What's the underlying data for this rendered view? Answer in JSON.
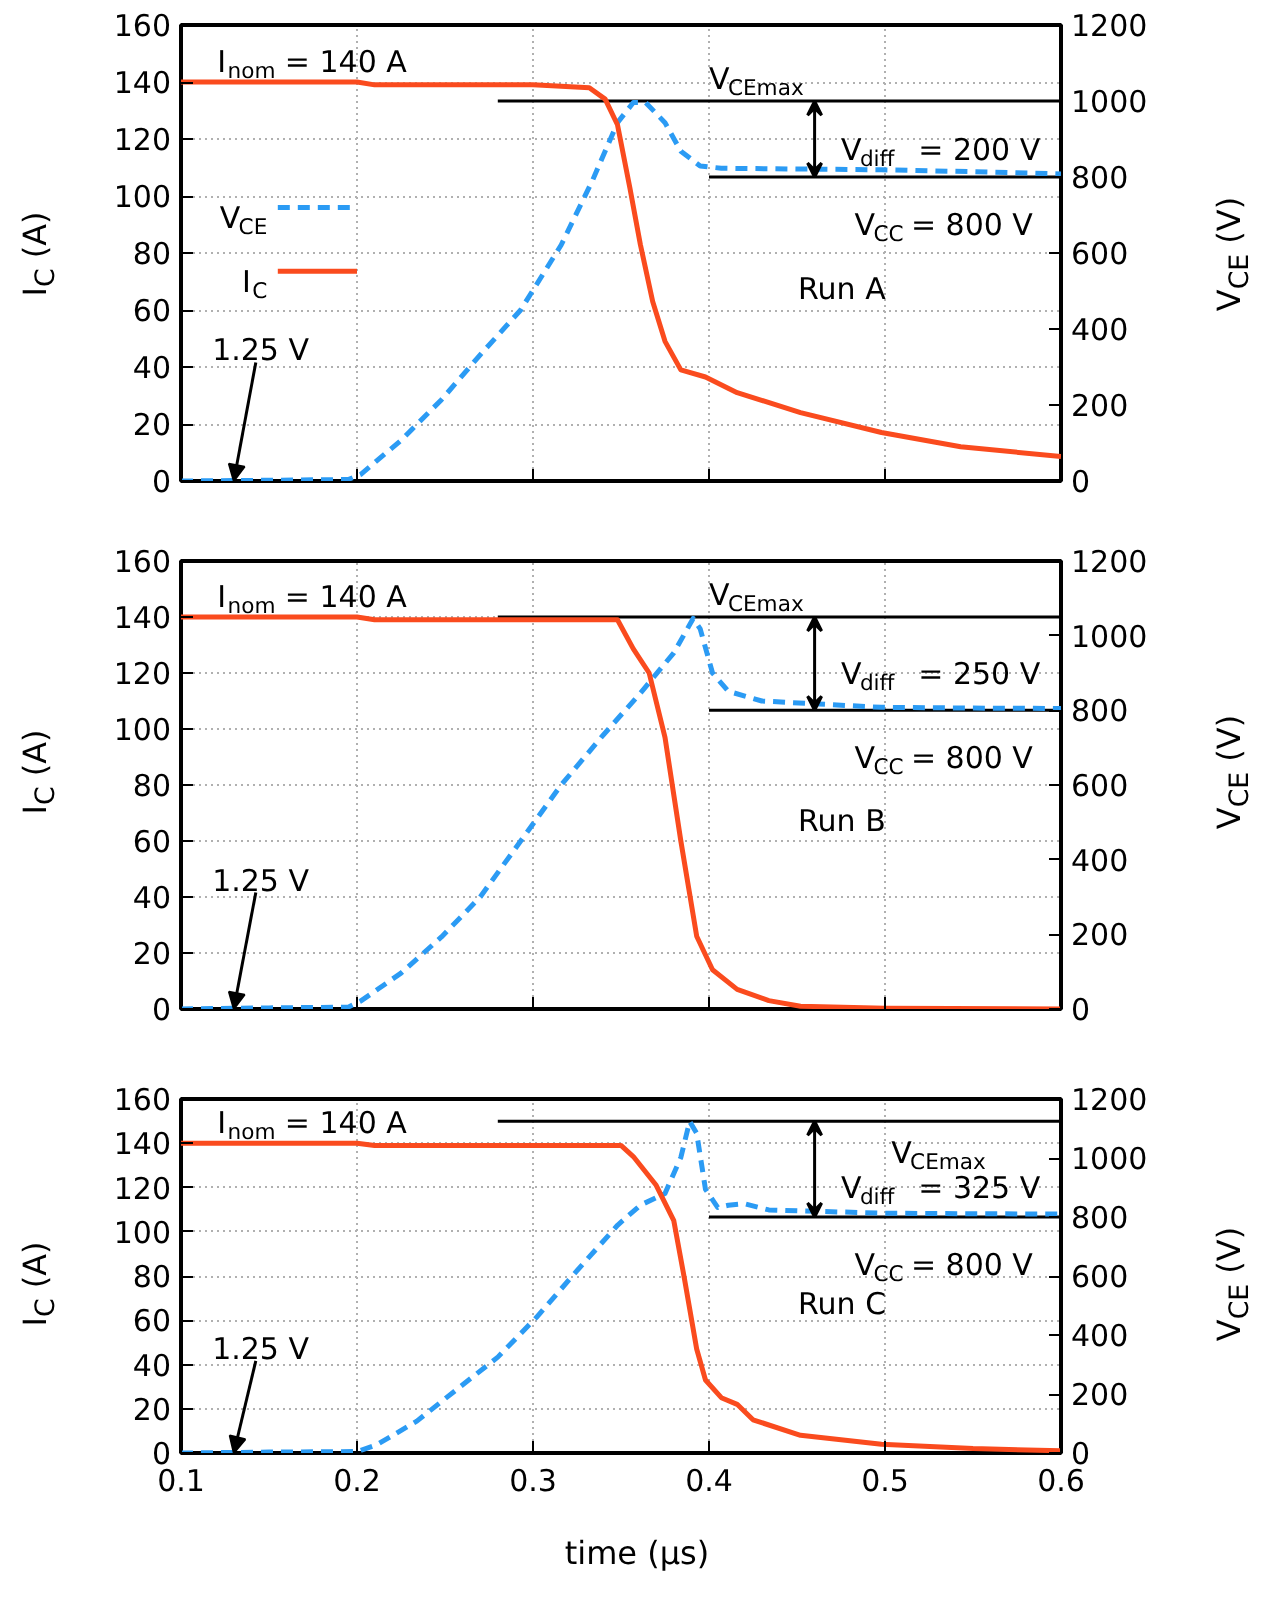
{
  "chart_data": [
    {
      "type": "line",
      "ylabel": "I$_{C}$ (A)",
      "y2label": "V$_{CE}$ (V)",
      "xlim": [
        0.1,
        0.6
      ],
      "xticks": [
        0.1,
        0.2,
        0.3,
        0.4,
        0.5,
        0.6
      ],
      "ylim": [
        0,
        160
      ],
      "yticks": [
        0,
        20,
        40,
        60,
        80,
        100,
        120,
        140,
        160
      ],
      "y2lim": [
        0,
        1200
      ],
      "y2ticks": [
        0,
        200,
        400,
        600,
        800,
        1000,
        1200
      ],
      "tick_labels": "y",
      "grid": true,
      "legend": "left",
      "series": [
        {
          "name": "V$_{CE}$",
          "color": "#2b9bf4",
          "axis": "y2",
          "line_style": "dashed",
          "x": [
            0.1,
            0.15,
            0.195,
            0.202,
            0.225,
            0.248,
            0.27,
            0.293,
            0.316,
            0.334,
            0.348,
            0.357,
            0.364,
            0.375,
            0.384,
            0.395,
            0.407,
            0.45,
            0.498,
            0.55,
            0.6
          ],
          "values": [
            0,
            2,
            4,
            17,
            107,
            214,
            332,
            450,
            621,
            793,
            943,
            996,
            996,
            943,
            868,
            829,
            823,
            821,
            819,
            814,
            808
          ]
        },
        {
          "name": "I$_{C}$",
          "color": "#fa4b1e",
          "line_style": "solid",
          "x": [
            0.1,
            0.2,
            0.21,
            0.25,
            0.3,
            0.332,
            0.341,
            0.348,
            0.355,
            0.361,
            0.368,
            0.375,
            0.384,
            0.398,
            0.416,
            0.452,
            0.498,
            0.543,
            0.6
          ],
          "values": [
            140,
            140,
            139,
            139,
            139,
            138,
            134,
            125,
            103,
            83,
            63,
            49,
            39,
            36.5,
            31,
            24,
            17,
            12,
            8.6
          ]
        }
      ],
      "ref_lines": [
        {
          "axis": "y2",
          "value": 1000,
          "label": "V$_{CEmax}$"
        },
        {
          "axis": "y2",
          "value": 800,
          "label": "V$_{CC}$ = 800 V"
        }
      ],
      "annotations": [
        {
          "text": "I$_{nom}$ = 140 A",
          "x": 0.17,
          "y": 140
        },
        {
          "text": "1.25 V",
          "x": 0.13,
          "y": 0
        },
        {
          "text": "V$_{diff}$ = 200 V",
          "x": 0.46,
          "y": 133.3
        },
        "Run A"
      ]
    },
    {
      "type": "line",
      "ylabel": "I$_{C}$ (A)",
      "y2label": "V$_{CE}$ (V)",
      "xlim": [
        0.1,
        0.6
      ],
      "xticks": [
        0.1,
        0.2,
        0.3,
        0.4,
        0.5,
        0.6
      ],
      "ylim": [
        0,
        160
      ],
      "yticks": [
        0,
        20,
        40,
        60,
        80,
        100,
        120,
        140,
        160
      ],
      "y2lim": [
        0,
        1200
      ],
      "y2ticks": [
        0,
        200,
        400,
        600,
        800,
        1000,
        1200
      ],
      "tick_labels": "y",
      "grid": true,
      "series": [
        {
          "color": "#2b9bf4",
          "axis": "y2",
          "line_style": "dashed",
          "x": [
            0.1,
            0.15,
            0.195,
            0.202,
            0.225,
            0.248,
            0.27,
            0.293,
            0.316,
            0.339,
            0.361,
            0.38,
            0.391,
            0.395,
            0.402,
            0.411,
            0.43,
            0.498,
            0.55,
            0.6
          ],
          "values": [
            0,
            3,
            5,
            21,
            96,
            193,
            300,
            450,
            600,
            729,
            846,
            954,
            1046,
            1018,
            900,
            851,
            825,
            808,
            806,
            805
          ]
        },
        {
          "color": "#fa4b1e",
          "line_style": "solid",
          "x": [
            0.1,
            0.2,
            0.21,
            0.3,
            0.348,
            0.357,
            0.366,
            0.375,
            0.384,
            0.393,
            0.402,
            0.416,
            0.434,
            0.452,
            0.5,
            0.6
          ],
          "values": [
            140,
            140,
            139,
            139,
            139,
            128.6,
            120,
            97,
            60,
            26,
            14,
            7,
            3,
            1,
            0.3,
            0
          ]
        }
      ],
      "ref_lines": [
        {
          "axis": "y2",
          "value": 1050,
          "label": "V$_{CEmax}$"
        },
        {
          "axis": "y2",
          "value": 800,
          "label": "V$_{CC}$ = 800 V"
        }
      ],
      "annotations": [
        {
          "text": "I$_{nom}$ = 140 A",
          "x": 0.17,
          "y": 140
        },
        {
          "text": "1.25 V",
          "x": 0.13,
          "y": 0
        },
        {
          "text": "V$_{diff}$ = 250 V",
          "x": 0.46,
          "y": 140
        },
        "Run B"
      ]
    },
    {
      "type": "line",
      "xlabel": "time (µs)",
      "ylabel": "I$_{C}$ (A)",
      "y2label": "V$_{CE}$ (V)",
      "xlim": [
        0.1,
        0.6
      ],
      "xticks": [
        0.1,
        0.2,
        0.3,
        0.4,
        0.5,
        0.6
      ],
      "ylim": [
        0,
        160
      ],
      "yticks": [
        0,
        20,
        40,
        60,
        80,
        100,
        120,
        140,
        160
      ],
      "y2lim": [
        0,
        1200
      ],
      "y2ticks": [
        0,
        200,
        400,
        600,
        800,
        1000,
        1200
      ],
      "grid": true,
      "series": [
        {
          "color": "#2b9bf4",
          "axis": "y2",
          "line_style": "dashed",
          "x": [
            0.1,
            0.15,
            0.2,
            0.211,
            0.234,
            0.257,
            0.28,
            0.302,
            0.325,
            0.348,
            0.361,
            0.375,
            0.384,
            0.389,
            0.393,
            0.398,
            0.405,
            0.411,
            0.42,
            0.434,
            0.498,
            0.55,
            0.6
          ],
          "values": [
            0,
            3,
            5,
            27,
            108,
            217,
            325,
            460,
            618,
            772,
            840,
            880,
            1002,
            1124,
            1084,
            894,
            832,
            840,
            845,
            824,
            813,
            811,
            810
          ]
        },
        {
          "color": "#fa4b1e",
          "line_style": "solid",
          "x": [
            0.1,
            0.2,
            0.21,
            0.3,
            0.35,
            0.357,
            0.37,
            0.38,
            0.386,
            0.393,
            0.398,
            0.407,
            0.416,
            0.425,
            0.452,
            0.498,
            0.55,
            0.6
          ],
          "values": [
            140,
            140,
            139,
            139,
            139,
            134,
            121,
            105,
            79,
            47,
            33,
            25,
            22,
            15,
            8,
            4,
            2,
            1
          ]
        }
      ],
      "ref_lines": [
        {
          "axis": "y2",
          "value": 1125,
          "label": "V$_{CEmax}$"
        },
        {
          "axis": "y2",
          "value": 800,
          "label": "V$_{CC}$ = 800 V"
        }
      ],
      "annotations": [
        {
          "text": "I$_{nom}$ = 140 A",
          "x": 0.17,
          "y": 140
        },
        {
          "text": "1.25 V",
          "x": 0.13,
          "y": 0
        },
        {
          "text": "V$_{diff}$ = 325 V",
          "x": 0.46,
          "y": 150
        },
        "Run C"
      ]
    }
  ]
}
